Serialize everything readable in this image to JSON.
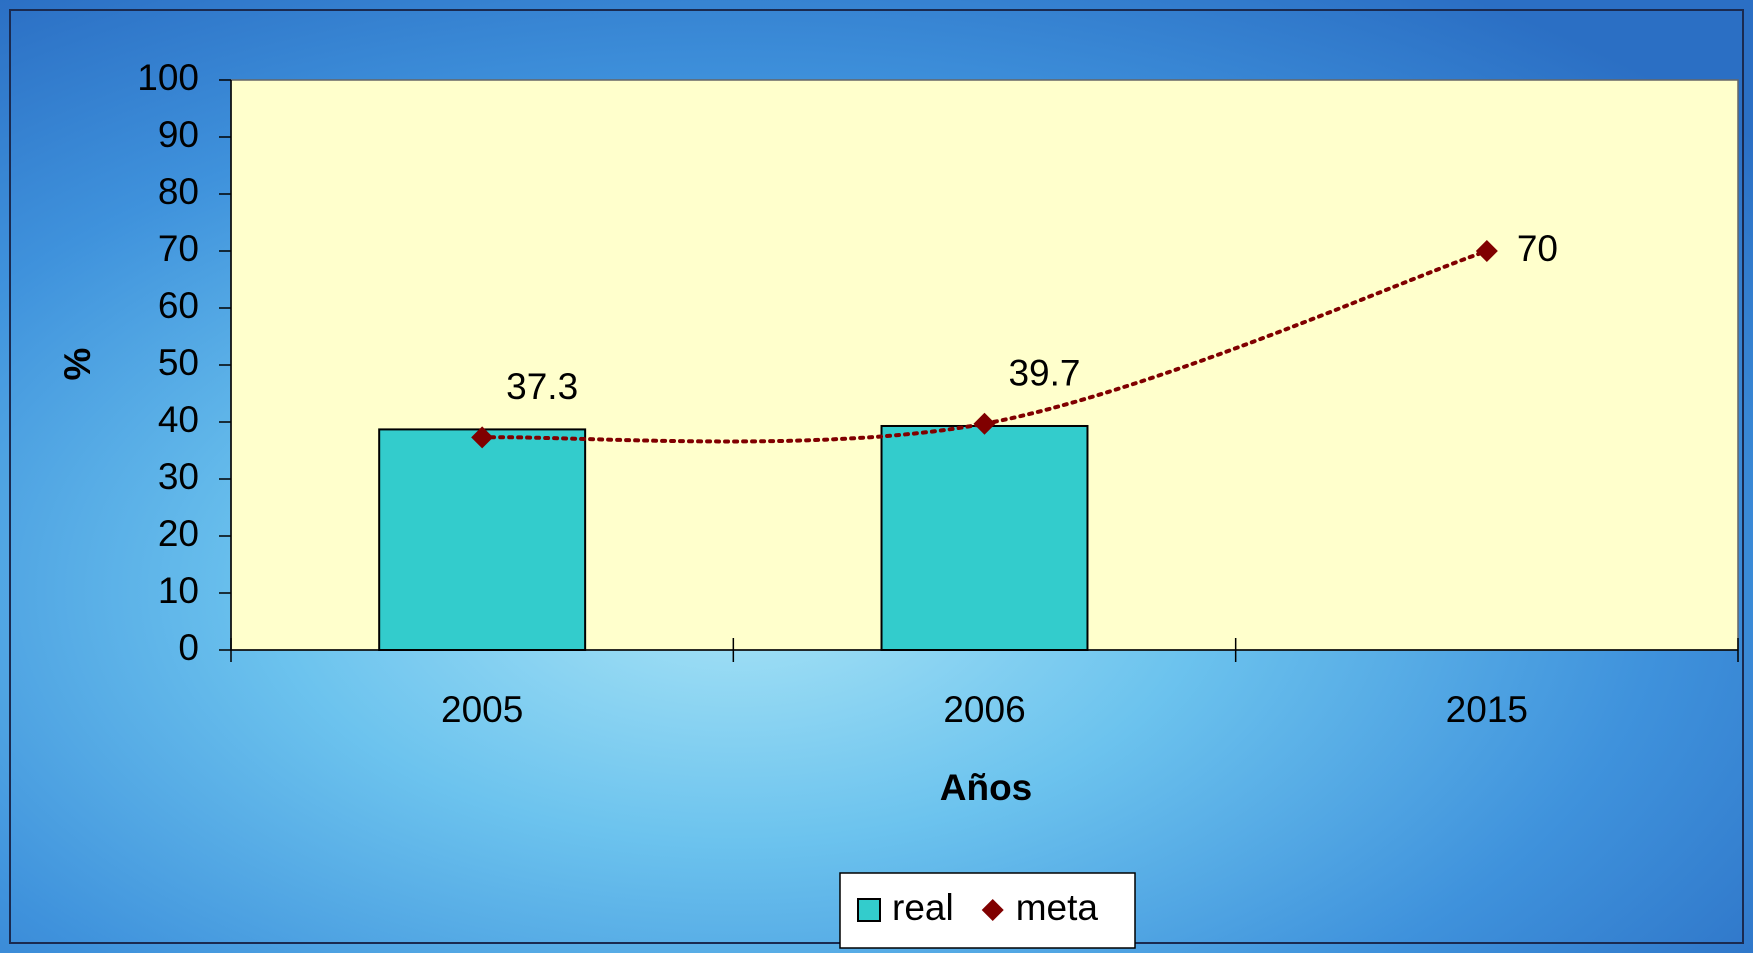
{
  "chart_data": {
    "type": "bar",
    "x_label": "Años",
    "y_label": "%",
    "categories": [
      "2005",
      "2006",
      "2015"
    ],
    "series": [
      {
        "name": "real",
        "type": "bar",
        "color": "#33cccc",
        "values": [
          38.7,
          39.3,
          null
        ]
      },
      {
        "name": "meta",
        "type": "line",
        "color": "#800000",
        "values": [
          37.3,
          39.7,
          70
        ],
        "smooth": true,
        "dotted": true,
        "data_labels": true
      }
    ],
    "ylim": [
      0,
      100
    ],
    "yticks": [
      0,
      10,
      20,
      30,
      40,
      50,
      60,
      70,
      80,
      90,
      100
    ],
    "grid": false,
    "legend": "bottom",
    "plot_background": "#ffffcc"
  }
}
